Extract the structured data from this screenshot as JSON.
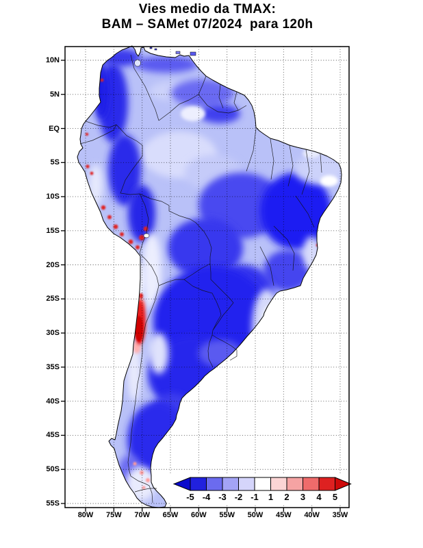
{
  "title": {
    "line1": "Vies medio da TMAX:",
    "line2": "BAM – SAMet 07/2024  para 120h"
  },
  "axes": {
    "lat_labels": [
      "10N",
      "5N",
      "EQ",
      "5S",
      "10S",
      "15S",
      "20S",
      "25S",
      "30S",
      "35S",
      "40S",
      "45S",
      "50S",
      "55S"
    ],
    "lon_labels": [
      "80W",
      "75W",
      "70W",
      "65W",
      "60W",
      "55W",
      "50W",
      "45W",
      "40W",
      "35W"
    ]
  },
  "colorbar": {
    "labels": [
      "-5",
      "-4",
      "-3",
      "-2",
      "-1",
      "1",
      "2",
      "3",
      "4",
      "5"
    ],
    "segment_colors": [
      "#2121de",
      "#6b6bef",
      "#a3a3f5",
      "#d5d5fb",
      "#ffffff",
      "#fbd5d5",
      "#f5a3a3",
      "#ef6b6b",
      "#de2121"
    ],
    "arrow_left_color": "#0a0acd",
    "arrow_right_color": "#cd0a0a"
  },
  "chart_data": {
    "type": "heatmap",
    "title": "Vies medio da TMAX: BAM – SAMet 07/2024 para 120h",
    "region": "South America",
    "x_axis": {
      "label": "longitude",
      "ticks": [
        "80W",
        "75W",
        "70W",
        "65W",
        "60W",
        "55W",
        "50W",
        "45W",
        "40W",
        "35W"
      ]
    },
    "y_axis": {
      "label": "latitude",
      "ticks": [
        "10N",
        "5N",
        "EQ",
        "5S",
        "10S",
        "15S",
        "20S",
        "25S",
        "30S",
        "35S",
        "40S",
        "45S",
        "50S",
        "55S"
      ]
    },
    "colorbar_levels": [
      -5,
      -4,
      -3,
      -2,
      -1,
      1,
      2,
      3,
      4,
      5
    ],
    "legend_position": "bottom-right-inside",
    "grid": true,
    "notes": "Mostly negative (blue) TMAX bias over the continent; strong positive (red) bias strip along the Chilean Andes near 26S-32S and red spots along the Peruvian Andes/coast."
  }
}
